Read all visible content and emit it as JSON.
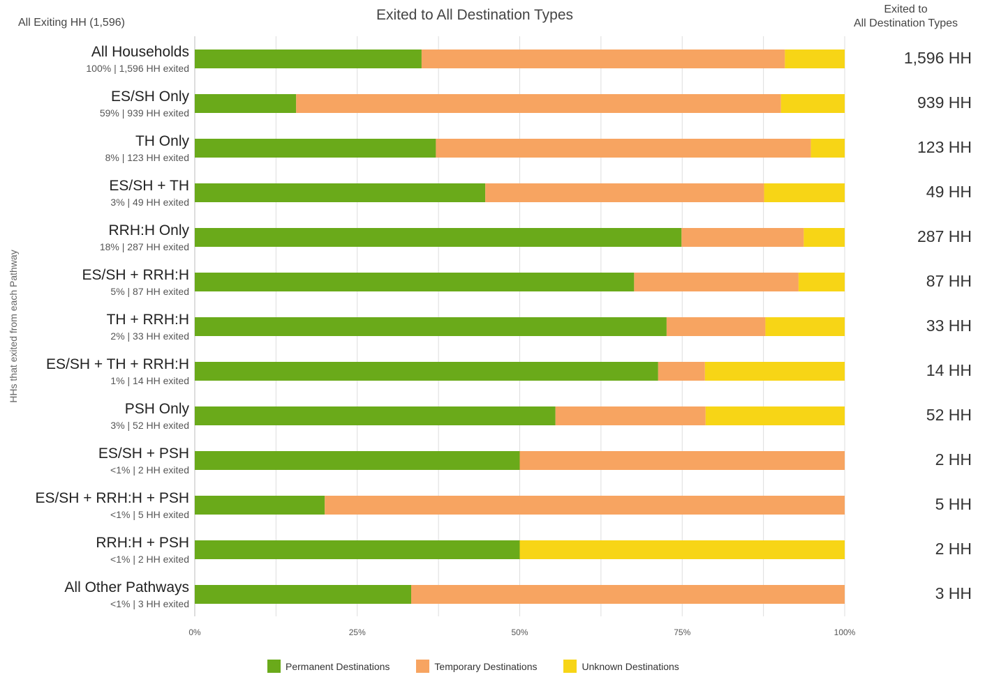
{
  "header": {
    "title": "Exited to All Destination Types",
    "left": "All Exiting HH (1,596)",
    "right_line1": "Exited to",
    "right_line2": "All Destination Types"
  },
  "y_axis_title": "HHs that exited from each Pathway",
  "colors": {
    "permanent": "#6aaa1a",
    "temporary": "#f7a461",
    "unknown": "#f7d516",
    "grid": "#dddddd"
  },
  "legend": [
    {
      "label": "Permanent Destinations",
      "color": "#6aaa1a"
    },
    {
      "label": "Temporary Destinations",
      "color": "#f7a461"
    },
    {
      "label": "Unknown Destinations",
      "color": "#f7d516"
    }
  ],
  "chart_data": {
    "type": "bar",
    "orientation": "horizontal",
    "stacked": "percent",
    "title": "Exited to All Destination Types",
    "ylabel": "HHs that exited from each Pathway",
    "xlim": [
      0,
      100
    ],
    "x_ticks": [
      "0%",
      "25%",
      "50%",
      "75%",
      "100%"
    ],
    "categories": [
      "All Households",
      "ES/SH Only",
      "TH Only",
      "ES/SH + TH",
      "RRH:H Only",
      "ES/SH + RRH:H",
      "TH + RRH:H",
      "ES/SH + TH + RRH:H",
      "PSH Only",
      "ES/SH + PSH",
      "ES/SH + RRH:H + PSH",
      "RRH:H + PSH",
      "All Other Pathways"
    ],
    "sublabels": [
      "100% | 1,596 HH exited",
      "59% | 939 HH exited",
      "8% | 123 HH exited",
      "3% | 49 HH exited",
      "18% | 287 HH exited",
      "5% | 87 HH exited",
      "2% | 33 HH exited",
      "1% | 14 HH exited",
      "3% | 52 HH exited",
      "<1% | 2 HH exited",
      "<1% | 5 HH exited",
      "<1% | 2 HH exited",
      "<1% | 3 HH exited"
    ],
    "totals": [
      "1,596 HH",
      "939 HH",
      "123 HH",
      "49 HH",
      "287 HH",
      "87 HH",
      "33 HH",
      "14 HH",
      "52 HH",
      "2 HH",
      "5 HH",
      "2 HH",
      "3 HH"
    ],
    "series": [
      {
        "name": "Permanent Destinations",
        "values": [
          34.9,
          15.6,
          37.1,
          44.7,
          74.9,
          67.6,
          72.6,
          71.3,
          55.5,
          50.0,
          20.0,
          50.0,
          33.3
        ]
      },
      {
        "name": "Temporary Destinations",
        "values": [
          55.9,
          74.6,
          57.7,
          42.9,
          18.8,
          25.3,
          15.2,
          7.2,
          23.1,
          50.0,
          80.0,
          0.0,
          66.7
        ]
      },
      {
        "name": "Unknown Destinations",
        "values": [
          9.2,
          9.8,
          5.2,
          12.4,
          6.3,
          7.1,
          12.2,
          21.5,
          21.4,
          0.0,
          0.0,
          50.0,
          0.0
        ]
      }
    ]
  }
}
